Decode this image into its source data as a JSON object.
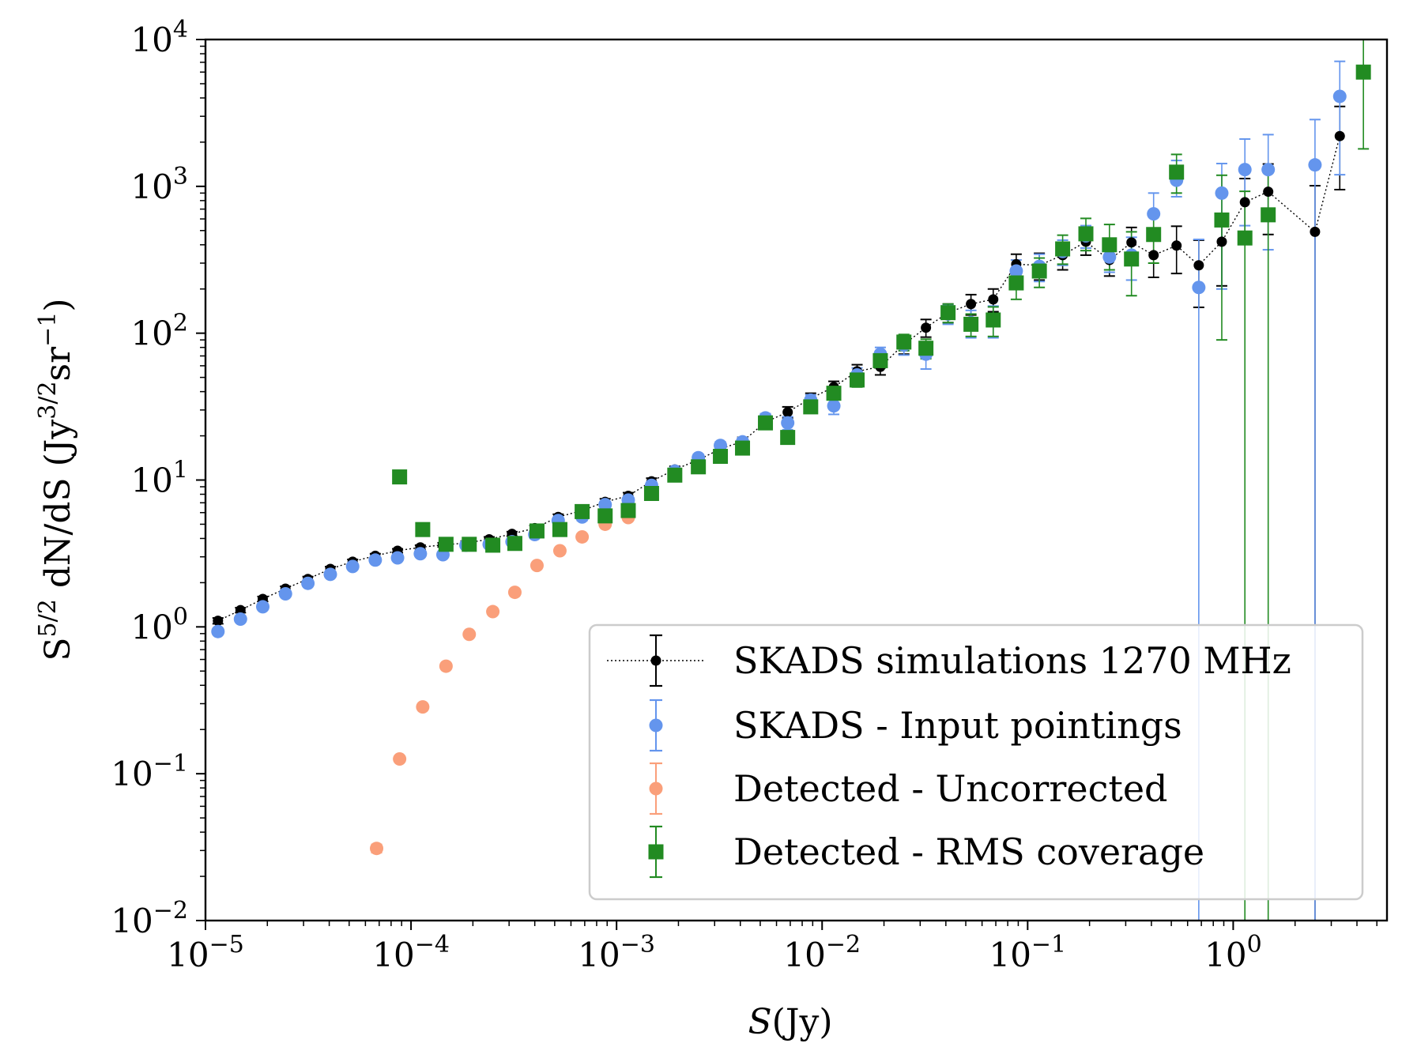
{
  "chart_data": {
    "type": "scatter",
    "title": "",
    "xlabel": "S(Jy)",
    "ylabel": "S^{5/2} dN/dS (Jy^{3/2} sr^{-1})",
    "xscale": "log",
    "yscale": "log",
    "xlim": [
      1e-05,
      5.6
    ],
    "ylim": [
      0.01,
      10000
    ],
    "x_ticks": [
      {
        "value": 1e-05,
        "base": "10",
        "exp": "−5"
      },
      {
        "value": 0.0001,
        "base": "10",
        "exp": "−4"
      },
      {
        "value": 0.001,
        "base": "10",
        "exp": "−3"
      },
      {
        "value": 0.01,
        "base": "10",
        "exp": "−2"
      },
      {
        "value": 0.1,
        "base": "10",
        "exp": "−1"
      },
      {
        "value": 1,
        "base": "10",
        "exp": "0"
      }
    ],
    "y_ticks": [
      {
        "value": 0.01,
        "base": "10",
        "exp": "−2"
      },
      {
        "value": 0.1,
        "base": "10",
        "exp": "−1"
      },
      {
        "value": 1,
        "base": "10",
        "exp": "0"
      },
      {
        "value": 10,
        "base": "10",
        "exp": "1"
      },
      {
        "value": 100,
        "base": "10",
        "exp": "2"
      },
      {
        "value": 1000,
        "base": "10",
        "exp": "3"
      },
      {
        "value": 10000,
        "base": "10",
        "exp": "4"
      }
    ],
    "legend_position": "lower-right",
    "series": [
      {
        "name": "SKADS simulations 1270 MHz",
        "color": "#000000",
        "marker": "circle-small",
        "line": "dotted",
        "x": [
          1.15e-05,
          1.48e-05,
          1.9e-05,
          2.45e-05,
          3.15e-05,
          4.05e-05,
          5.2e-05,
          6.7e-05,
          8.6e-05,
          0.000111,
          0.000143,
          0.000185,
          0.00024,
          0.00031,
          0.0004,
          0.00052,
          0.00068,
          0.00088,
          0.00114,
          0.00148,
          0.00192,
          0.0025,
          0.0032,
          0.0041,
          0.0053,
          0.0068,
          0.0088,
          0.0114,
          0.0148,
          0.0192,
          0.025,
          0.032,
          0.041,
          0.053,
          0.068,
          0.088,
          0.114,
          0.148,
          0.192,
          0.25,
          0.32,
          0.41,
          0.53,
          0.68,
          0.88,
          1.14,
          1.48,
          2.5,
          3.3
        ],
        "y": [
          1.1,
          1.3,
          1.55,
          1.82,
          2.12,
          2.48,
          2.78,
          3.05,
          3.3,
          3.48,
          3.62,
          3.72,
          3.95,
          4.3,
          4.7,
          5.6,
          6.2,
          7.1,
          7.8,
          9.8,
          11.8,
          13.7,
          16.3,
          18.3,
          24.8,
          29,
          36,
          43,
          55,
          59,
          84,
          109,
          138,
          158,
          170,
          295,
          290,
          340,
          420,
          315,
          415,
          340,
          395,
          290,
          420,
          780,
          920,
          490,
          2200
        ],
        "err_lo": [
          0.05,
          0.05,
          0.06,
          0.07,
          0.08,
          0.09,
          0.1,
          0.1,
          0.1,
          0.12,
          0.12,
          0.12,
          0.15,
          0.15,
          0.2,
          0.25,
          0.3,
          0.35,
          0.4,
          0.5,
          0.6,
          0.8,
          1.0,
          1.2,
          1.8,
          2.5,
          3,
          4,
          6,
          7,
          12,
          15,
          20,
          25,
          30,
          50,
          60,
          70,
          80,
          70,
          110,
          100,
          140,
          140,
          210,
          300,
          450,
          490,
          1250
        ],
        "err_hi": [
          0.05,
          0.05,
          0.06,
          0.07,
          0.08,
          0.09,
          0.1,
          0.1,
          0.1,
          0.12,
          0.12,
          0.12,
          0.15,
          0.15,
          0.2,
          0.25,
          0.3,
          0.35,
          0.4,
          0.5,
          0.6,
          0.8,
          1.0,
          1.2,
          1.8,
          2.5,
          3,
          4,
          6,
          7,
          12,
          15,
          20,
          25,
          30,
          50,
          60,
          70,
          80,
          70,
          110,
          100,
          140,
          140,
          210,
          350,
          500,
          520,
          1300
        ]
      },
      {
        "name": "SKADS - Input pointings",
        "color": "#6495ED",
        "marker": "circle",
        "line": "none",
        "x": [
          1.15e-05,
          1.48e-05,
          1.9e-05,
          2.45e-05,
          3.15e-05,
          4.05e-05,
          5.2e-05,
          6.7e-05,
          8.6e-05,
          0.000111,
          0.000143,
          0.000185,
          0.00024,
          0.00031,
          0.0004,
          0.00052,
          0.00068,
          0.00088,
          0.00114,
          0.00148,
          0.00192,
          0.0025,
          0.0032,
          0.0041,
          0.0053,
          0.0068,
          0.0088,
          0.0114,
          0.0148,
          0.0192,
          0.025,
          0.032,
          0.041,
          0.053,
          0.068,
          0.088,
          0.114,
          0.148,
          0.192,
          0.25,
          0.32,
          0.41,
          0.53,
          0.68,
          0.88,
          1.14,
          1.48,
          2.5,
          3.3
        ],
        "y": [
          0.93,
          1.13,
          1.37,
          1.68,
          1.98,
          2.28,
          2.58,
          2.85,
          2.95,
          3.15,
          3.1,
          3.6,
          3.65,
          3.8,
          4.25,
          5.3,
          5.6,
          6.8,
          7.3,
          9.2,
          11.5,
          14.2,
          17.2,
          18.2,
          26.5,
          24.5,
          35,
          32,
          52,
          72,
          83,
          72,
          135,
          118,
          123,
          265,
          285,
          360,
          460,
          330,
          340,
          650,
          1100,
          205,
          900,
          1300,
          1300,
          1400,
          4100
        ],
        "err_lo": [
          0.04,
          0.05,
          0.05,
          0.06,
          0.07,
          0.08,
          0.09,
          0.1,
          0.1,
          0.12,
          0.12,
          0.12,
          0.15,
          0.15,
          0.2,
          0.25,
          0.3,
          0.35,
          0.4,
          0.5,
          0.6,
          0.8,
          1.0,
          1.2,
          1.8,
          2.5,
          3,
          4,
          6,
          8,
          12,
          15,
          20,
          25,
          30,
          50,
          60,
          70,
          80,
          70,
          110,
          150,
          250,
          205,
          700,
          760,
          930,
          1400,
          2900
        ],
        "err_hi": [
          0.04,
          0.05,
          0.05,
          0.06,
          0.07,
          0.08,
          0.09,
          0.1,
          0.1,
          0.12,
          0.12,
          0.12,
          0.15,
          0.15,
          0.2,
          0.25,
          0.3,
          0.35,
          0.4,
          0.5,
          0.6,
          0.8,
          1.0,
          1.2,
          1.8,
          2.5,
          3,
          4,
          6,
          8,
          12,
          15,
          20,
          25,
          30,
          50,
          60,
          70,
          80,
          70,
          110,
          250,
          400,
          230,
          530,
          800,
          950,
          1450,
          3000
        ]
      },
      {
        "name": "Detected - Uncorrected",
        "color": "#FA9F7A",
        "marker": "circle",
        "line": "none",
        "x": [
          6.8e-05,
          8.8e-05,
          0.000114,
          0.000148,
          0.000192,
          0.00025,
          0.00032,
          0.00041,
          0.00053,
          0.00068,
          0.00088,
          0.00114
        ],
        "y": [
          0.031,
          0.126,
          0.285,
          0.54,
          0.89,
          1.27,
          1.72,
          2.62,
          3.3,
          4.1,
          5.0,
          5.55
        ],
        "err_lo": [
          0.002,
          0.004,
          0.006,
          0.01,
          0.015,
          0.02,
          0.03,
          0.04,
          0.05,
          0.06,
          0.07,
          0.08
        ],
        "err_hi": [
          0.002,
          0.004,
          0.006,
          0.01,
          0.015,
          0.02,
          0.03,
          0.04,
          0.05,
          0.06,
          0.07,
          0.08
        ]
      },
      {
        "name": "Detected - RMS coverage",
        "color": "#228B22",
        "marker": "square",
        "line": "none",
        "x": [
          8.8e-05,
          0.000114,
          0.000148,
          0.000192,
          0.00025,
          0.00032,
          0.00041,
          0.00053,
          0.00068,
          0.00088,
          0.00114,
          0.00148,
          0.00192,
          0.0025,
          0.0032,
          0.0041,
          0.0053,
          0.0068,
          0.0088,
          0.0114,
          0.0148,
          0.0192,
          0.025,
          0.032,
          0.041,
          0.053,
          0.068,
          0.088,
          0.114,
          0.148,
          0.192,
          0.25,
          0.32,
          0.41,
          0.53,
          0.88,
          1.14,
          1.48,
          4.3
        ],
        "y": [
          10.5,
          4.6,
          3.65,
          3.65,
          3.6,
          3.7,
          4.5,
          4.6,
          6.1,
          5.7,
          6.2,
          8.1,
          10.8,
          12.3,
          14.5,
          16.5,
          24.5,
          19.5,
          31.5,
          39,
          48,
          65,
          87,
          79,
          138,
          115,
          123,
          220,
          265,
          375,
          475,
          400,
          320,
          470,
          1250,
          590,
          445,
          640,
          6000
        ],
        "err_lo": [
          0.1,
          0.1,
          0.1,
          0.1,
          0.1,
          0.1,
          0.15,
          0.15,
          0.2,
          0.2,
          0.25,
          0.3,
          0.4,
          0.5,
          0.7,
          0.9,
          1.5,
          1.5,
          2.5,
          3.5,
          5,
          7,
          11,
          12,
          20,
          20,
          28,
          50,
          60,
          80,
          110,
          130,
          140,
          170,
          350,
          500,
          445,
          640,
          4200
        ],
        "err_hi": [
          0.1,
          0.1,
          0.1,
          0.1,
          0.1,
          0.1,
          0.15,
          0.15,
          0.2,
          0.2,
          0.25,
          0.3,
          0.4,
          0.5,
          0.7,
          0.9,
          1.5,
          1.5,
          2.5,
          3.5,
          5,
          7,
          11,
          12,
          20,
          20,
          28,
          50,
          60,
          90,
          130,
          150,
          170,
          200,
          400,
          600,
          480,
          700,
          4500
        ]
      }
    ]
  }
}
